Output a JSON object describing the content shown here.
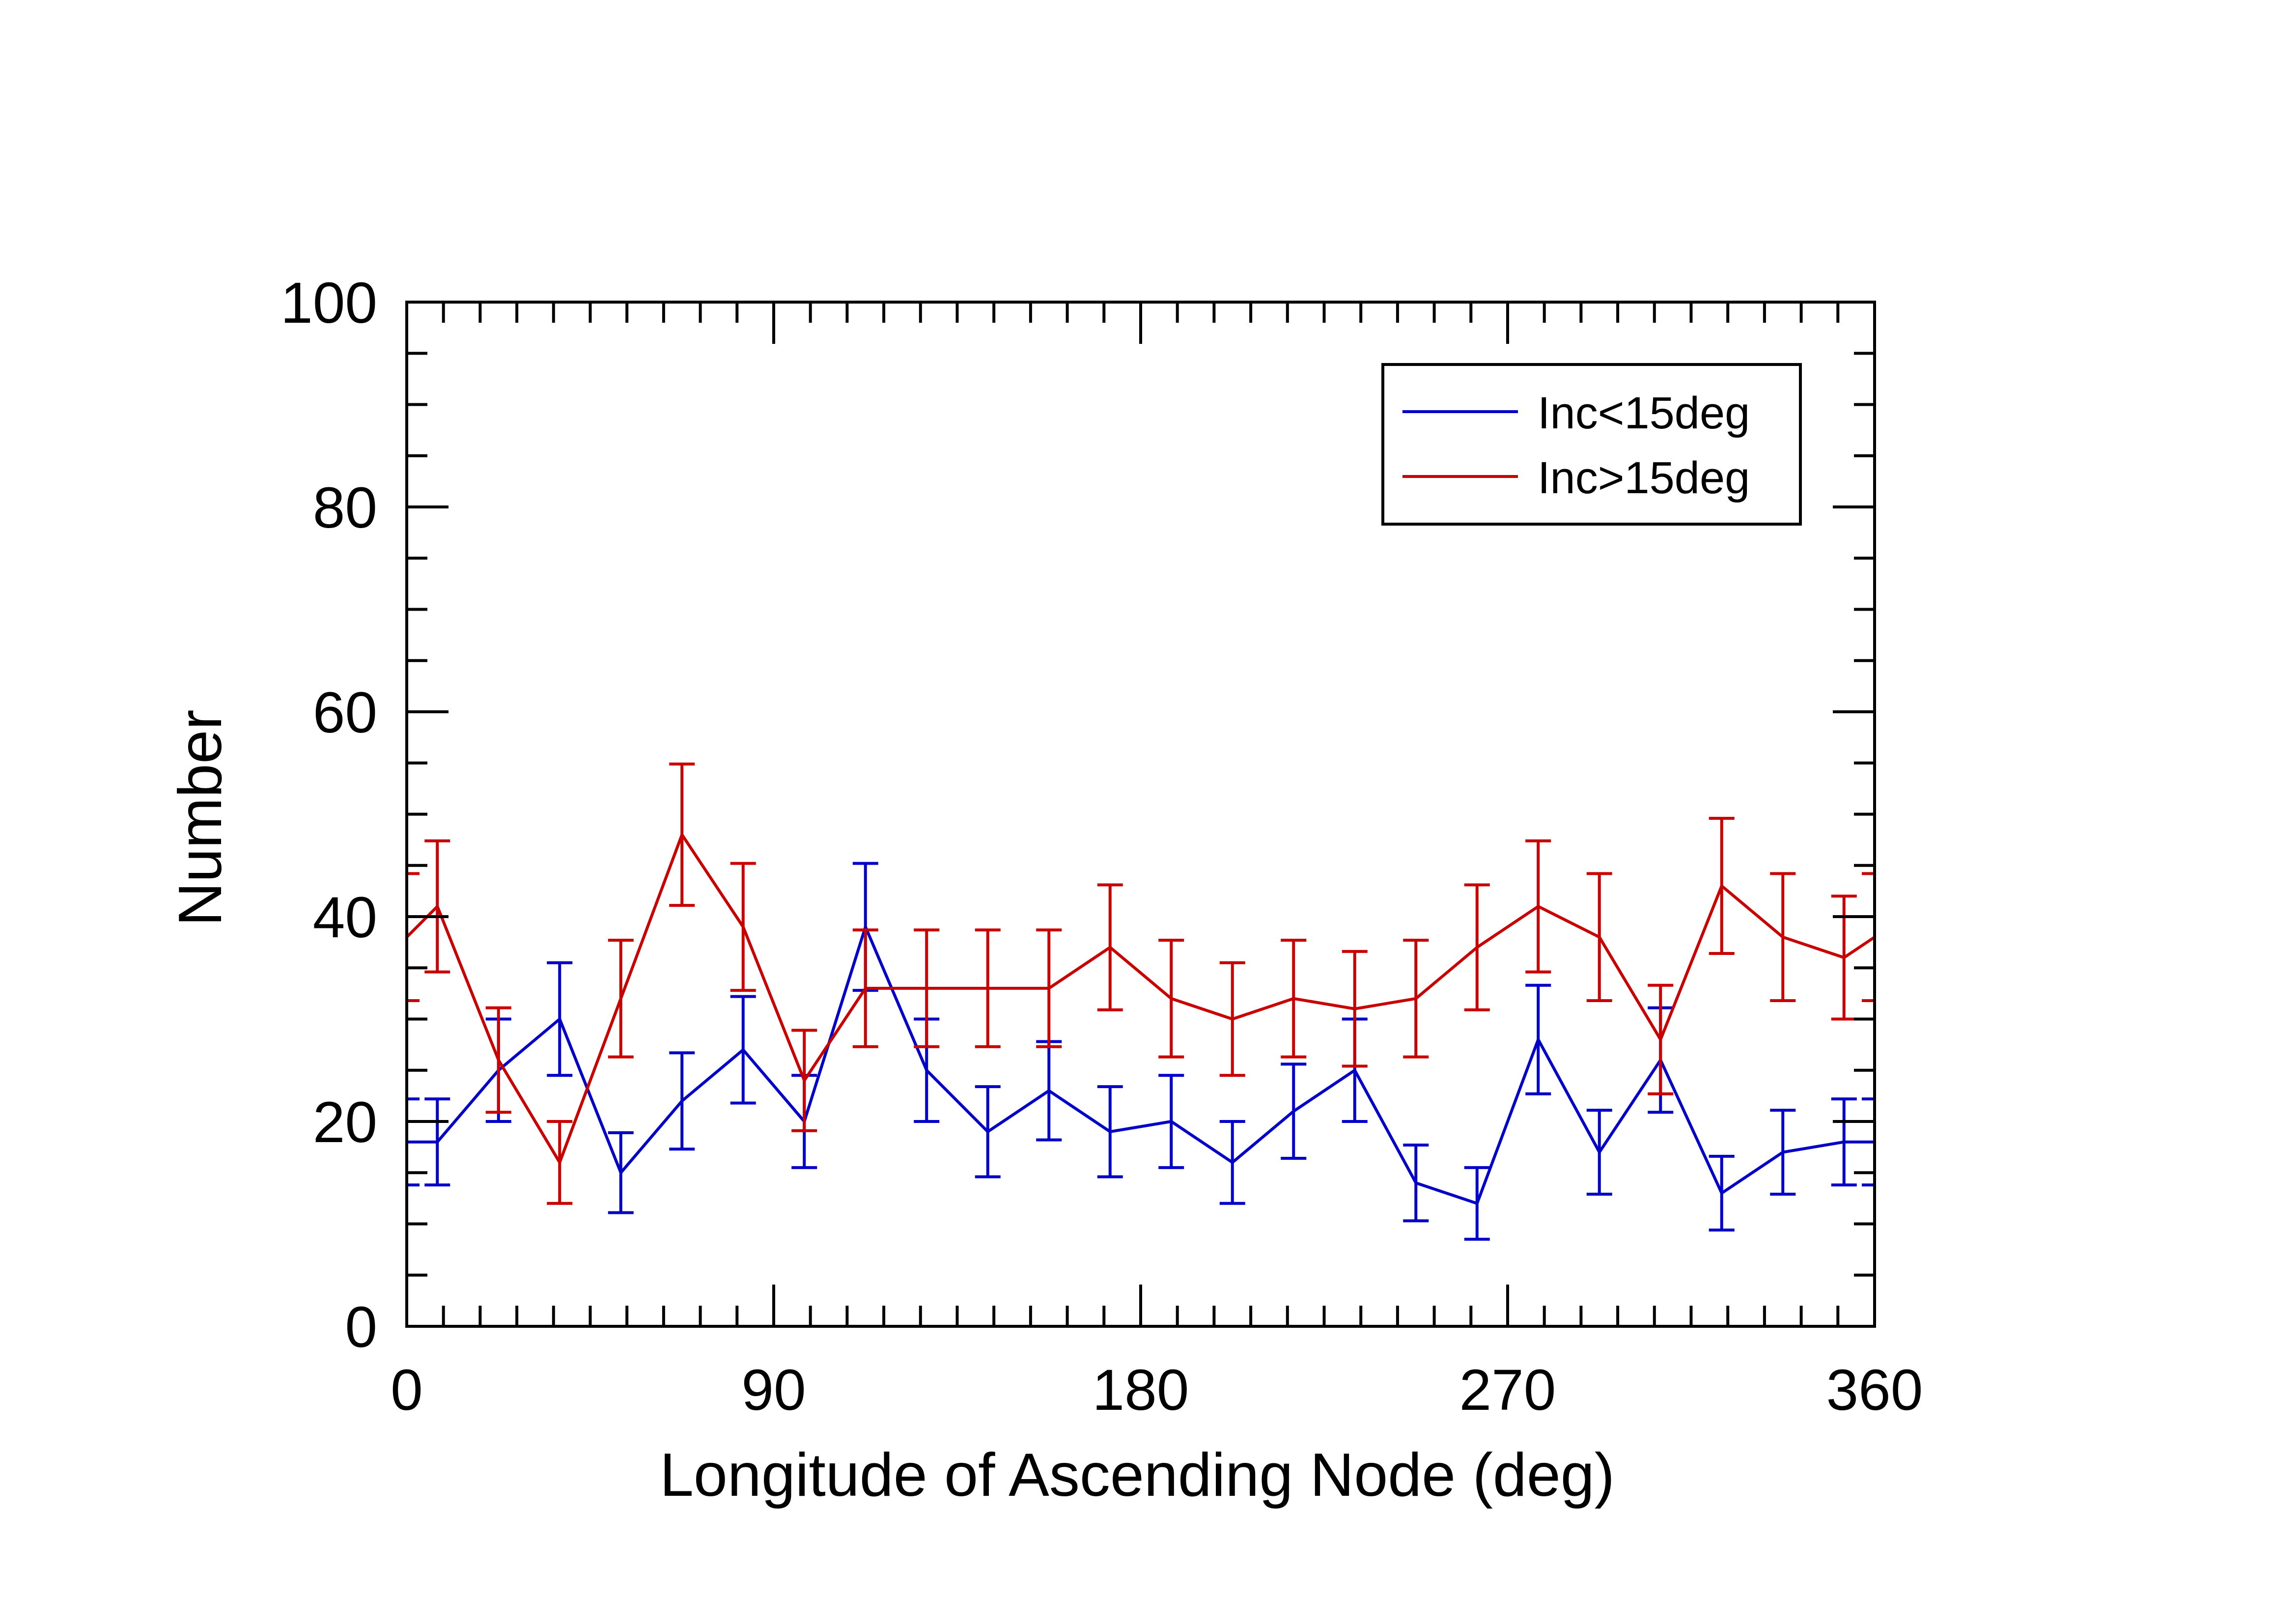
{
  "chart_data": {
    "type": "line",
    "xlabel": "Longitude of Ascending Node (deg)",
    "ylabel": "Number",
    "xlim": [
      0,
      360
    ],
    "ylim": [
      0,
      100
    ],
    "xticks": [
      0,
      90,
      180,
      270,
      360
    ],
    "yticks": [
      0,
      20,
      40,
      60,
      80,
      100
    ],
    "x_minor_step": 9,
    "y_minor_step": 5,
    "grid": false,
    "legend_position": "top-right",
    "x": [
      0,
      7.5,
      22.5,
      37.5,
      52.5,
      67.5,
      82.5,
      97.5,
      112.5,
      127.5,
      142.5,
      157.5,
      172.5,
      187.5,
      202.5,
      217.5,
      232.5,
      247.5,
      262.5,
      277.5,
      292.5,
      307.5,
      322.5,
      337.5,
      352.5,
      360
    ],
    "series": [
      {
        "name": "Inc<15deg",
        "color": "#0000c8",
        "values": [
          18,
          18,
          25,
          30,
          15,
          22,
          27,
          20,
          39,
          25,
          19,
          23,
          19,
          20,
          16,
          21,
          25,
          14,
          12,
          28,
          17,
          26,
          13,
          17,
          18,
          18
        ],
        "errors": [
          4.2,
          4.2,
          5,
          5.5,
          3.9,
          4.7,
          5.2,
          4.5,
          6.2,
          5,
          4.4,
          4.8,
          4.4,
          4.5,
          4,
          4.6,
          5,
          3.7,
          3.5,
          5.3,
          4.1,
          5.1,
          3.6,
          4.1,
          4.2,
          4.2
        ]
      },
      {
        "name": "Inc>15deg",
        "color": "#c80000",
        "values": [
          38,
          41,
          26,
          16,
          32,
          48,
          39,
          24,
          33,
          33,
          33,
          33,
          37,
          32,
          30,
          32,
          31,
          32,
          37,
          41,
          38,
          28,
          43,
          38,
          36,
          38
        ],
        "errors": [
          6.2,
          6.4,
          5.1,
          4,
          5.7,
          6.9,
          6.2,
          4.9,
          5.7,
          5.7,
          5.7,
          5.7,
          6.1,
          5.7,
          5.5,
          5.7,
          5.6,
          5.7,
          6.1,
          6.4,
          6.2,
          5.3,
          6.6,
          6.2,
          6,
          6.2
        ]
      }
    ]
  }
}
